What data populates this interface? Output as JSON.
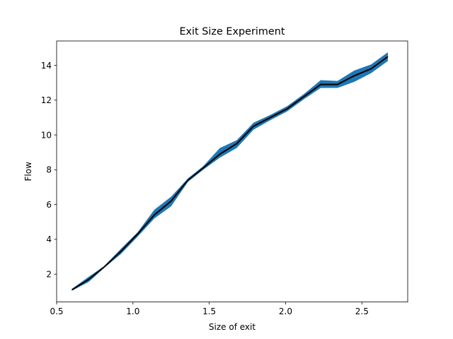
{
  "chart_data": {
    "type": "line",
    "title": "Exit Size Experiment",
    "xlabel": "Size of exit",
    "ylabel": "Flow",
    "xlim": [
      0.5,
      2.8
    ],
    "ylim": [
      0.4,
      15.4
    ],
    "xticks": [
      0.5,
      1.0,
      1.5,
      2.0,
      2.5
    ],
    "xtick_labels": [
      "0.5",
      "1.0",
      "1.5",
      "2.0",
      "2.5"
    ],
    "yticks": [
      2,
      4,
      6,
      8,
      10,
      12,
      14
    ],
    "ytick_labels": [
      "2",
      "4",
      "6",
      "8",
      "10",
      "12",
      "14"
    ],
    "grid": false,
    "series": [
      {
        "color": "#000000",
        "band_color": "#1f77b4",
        "x": [
          0.6,
          0.71,
          0.81,
          0.92,
          1.03,
          1.14,
          1.25,
          1.36,
          1.46,
          1.57,
          1.68,
          1.79,
          1.9,
          2.01,
          2.12,
          2.23,
          2.34,
          2.45,
          2.56,
          2.67
        ],
        "values": [
          1.1,
          1.7,
          2.4,
          3.3,
          4.3,
          5.4,
          6.2,
          7.4,
          8.1,
          8.9,
          9.5,
          10.5,
          11.0,
          11.5,
          12.2,
          12.9,
          12.9,
          13.4,
          13.8,
          14.5
        ],
        "lower": [
          1.05,
          1.55,
          2.35,
          3.15,
          4.15,
          5.2,
          5.9,
          7.3,
          8.0,
          8.7,
          9.25,
          10.3,
          10.85,
          11.35,
          12.05,
          12.7,
          12.7,
          13.05,
          13.55,
          14.25
        ],
        "upper": [
          1.15,
          1.85,
          2.45,
          3.45,
          4.4,
          5.7,
          6.45,
          7.5,
          8.2,
          9.25,
          9.7,
          10.7,
          11.15,
          11.65,
          12.35,
          13.15,
          13.1,
          13.7,
          14.05,
          14.75
        ]
      }
    ]
  }
}
